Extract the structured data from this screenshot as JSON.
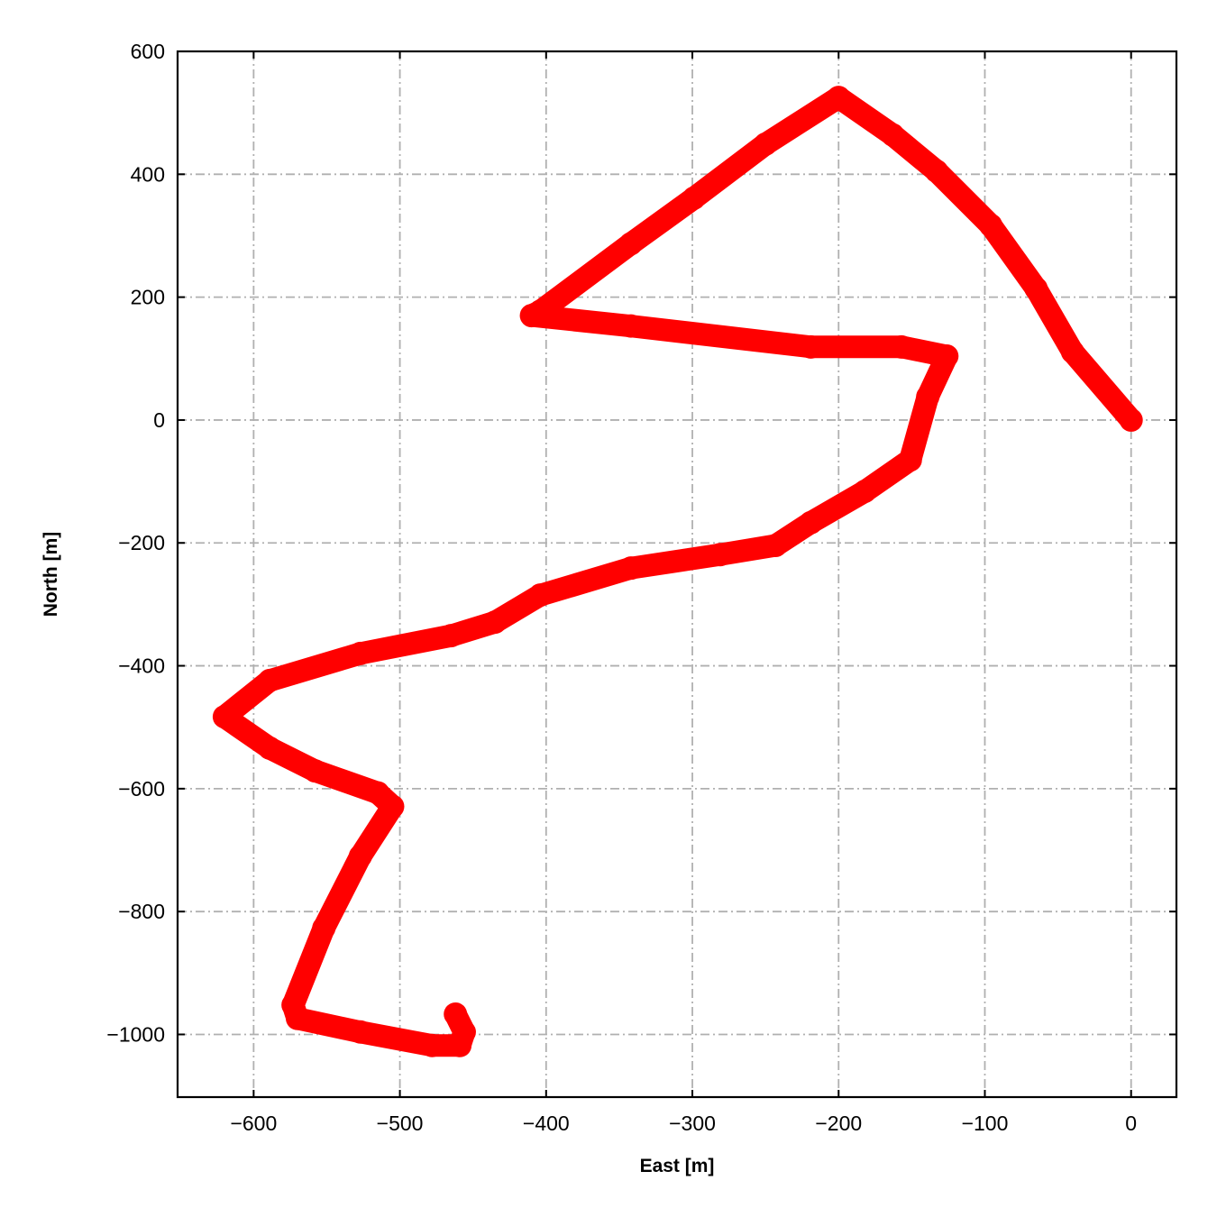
{
  "chart_data": {
    "type": "line",
    "title": "",
    "xlabel": "East [m]",
    "ylabel": "North [m]",
    "xlim": [
      -652,
      31
    ],
    "ylim": [
      -1102,
      600
    ],
    "xticks": [
      -600,
      -500,
      -400,
      -300,
      -200,
      -100,
      0
    ],
    "yticks": [
      600,
      400,
      200,
      0,
      -200,
      -400,
      -600,
      -800,
      -1000
    ],
    "xtick_labels": [
      "−600",
      "−500",
      "−400",
      "−300",
      "−200",
      "−100",
      "0"
    ],
    "ytick_labels": [
      "600",
      "400",
      "200",
      "0",
      "−200",
      "−400",
      "−600",
      "−800",
      "−1000"
    ],
    "grid": true,
    "grid_style": "dash-dot",
    "series_color": "#ff0000",
    "grid_color": "#b0b0b0",
    "series": [
      {
        "x": [
          0,
          -40,
          -65,
          -96,
          -133,
          -163,
          -200,
          -250,
          -299,
          -342,
          -404,
          -410,
          -342,
          -219,
          -157,
          -126,
          -139,
          -151,
          -182,
          -219,
          -243,
          -281,
          -342,
          -404,
          -435,
          -465,
          -527,
          -589,
          -620,
          -589,
          -558,
          -515,
          -505,
          -527,
          -552,
          -573,
          -570,
          -527,
          -478,
          -459,
          -456,
          -462
        ],
        "y": [
          0,
          111,
          214,
          317,
          405,
          464,
          525,
          449,
          361,
          287,
          177,
          170,
          153,
          119,
          119,
          104,
          38,
          -65,
          -116,
          -167,
          -204,
          -219,
          -241,
          -285,
          -329,
          -351,
          -380,
          -424,
          -483,
          -534,
          -571,
          -607,
          -629,
          -710,
          -827,
          -952,
          -974,
          -996,
          -1018,
          -1018,
          -996,
          -967
        ]
      }
    ]
  }
}
